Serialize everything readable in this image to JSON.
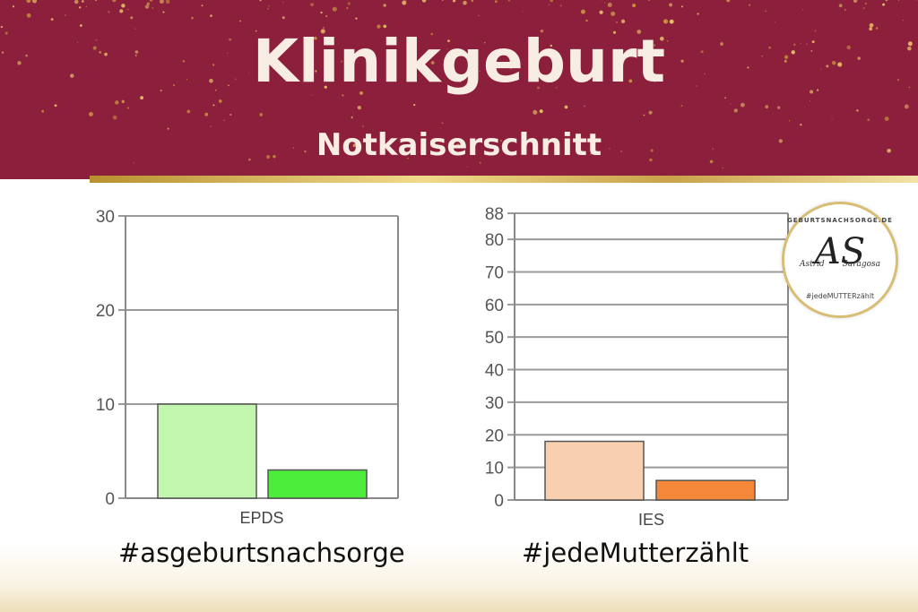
{
  "header": {
    "title": "Klinikgeburt",
    "subtitle": "Notkaiserschnitt"
  },
  "hashtags": {
    "left": "#asgeburtsnachsorge",
    "right": "#jedeMutterzählt"
  },
  "logo": {
    "ring_text": "GEBURTSNACHSORGE.DE",
    "monogram": "AS",
    "name_left": "Astrid",
    "name_right": "Saragosa",
    "tag": "#jedeMUTTERzählt"
  },
  "colors": {
    "banner": "#8c1f3c",
    "epds_light": "#c2f5ad",
    "epds_dark": "#4cec3a",
    "ies_light": "#f9d0af",
    "ies_dark": "#f58838"
  },
  "chart_data": [
    {
      "type": "bar",
      "categories": [
        "EPDS"
      ],
      "xlabel": "EPDS",
      "ylim": [
        0,
        30
      ],
      "yticks": [
        0,
        10,
        20,
        30
      ],
      "series": [
        {
          "values": [
            10
          ],
          "color": "#c2f5ad"
        },
        {
          "values": [
            3
          ],
          "color": "#4cec3a"
        }
      ],
      "grid": true
    },
    {
      "type": "bar",
      "categories": [
        "IES"
      ],
      "xlabel": "IES",
      "ylim": [
        0,
        88
      ],
      "yticks": [
        0,
        10,
        20,
        30,
        40,
        50,
        60,
        70,
        80,
        88
      ],
      "series": [
        {
          "values": [
            18
          ],
          "color": "#f9d0af"
        },
        {
          "values": [
            6
          ],
          "color": "#f58838"
        }
      ],
      "grid": true
    }
  ]
}
